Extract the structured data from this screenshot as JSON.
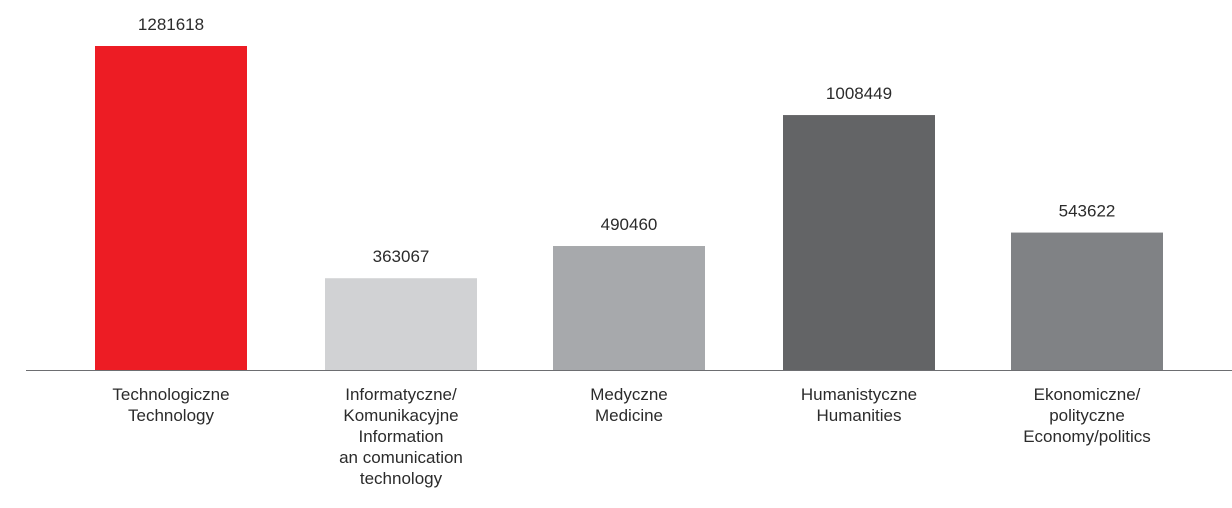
{
  "chart_data": {
    "type": "bar",
    "title": "",
    "xlabel": "",
    "ylabel": "",
    "ylim": [
      0,
      1281618
    ],
    "categories": [
      {
        "lines": [
          "Technologiczne",
          "Technology"
        ]
      },
      {
        "lines": [
          "Informatyczne/",
          "Komunikacyjne",
          "Information",
          "an comunication",
          "technology"
        ]
      },
      {
        "lines": [
          "Medyczne",
          "Medicine"
        ]
      },
      {
        "lines": [
          "Humanistyczne",
          "Humanities"
        ]
      },
      {
        "lines": [
          "Ekonomiczne/",
          "polityczne",
          "Economy/politics"
        ]
      }
    ],
    "values": [
      1281618,
      363067,
      490460,
      1008449,
      543622
    ],
    "value_labels": [
      "1281618",
      "363067",
      "490460",
      "1008449",
      "543622"
    ],
    "colors": [
      "#ed1c24",
      "#d1d2d4",
      "#a7a9ac",
      "#636466",
      "#808285"
    ],
    "axis_color": "#6d6e71"
  }
}
